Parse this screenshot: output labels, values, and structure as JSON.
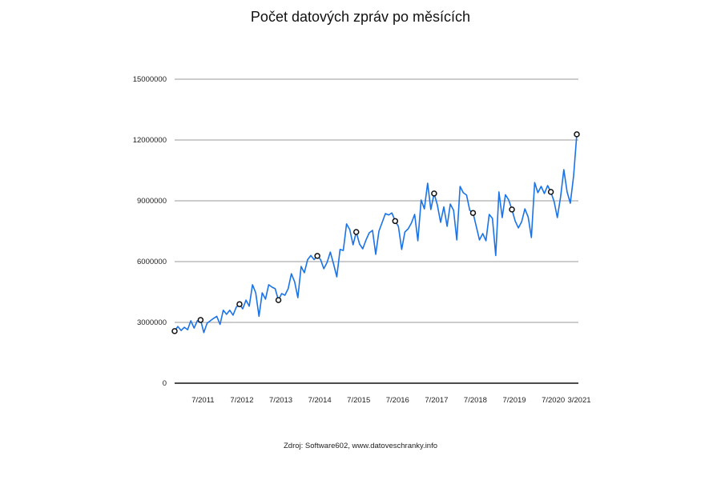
{
  "chart_data": {
    "type": "line",
    "title": "Počet datových zpráv po měsících",
    "source": "Zdroj: Software602, www.datoveschranky.info",
    "ylim": [
      0,
      15000000
    ],
    "y_ticks": [
      "0",
      "3000000",
      "6000000",
      "9000000",
      "12000000",
      "15000000"
    ],
    "x_tick_labels": [
      "7/2011",
      "7/2012",
      "7/2013",
      "7/2014",
      "7/2015",
      "7/2016",
      "7/2017",
      "7/2018",
      "7/2019",
      "7/2020",
      "3/2021"
    ],
    "grid": "horizontal",
    "line_color": "#1a73e8",
    "marker_dates": [
      "11/2010",
      "7/2011",
      "7/2012",
      "7/2013",
      "7/2014",
      "7/2015",
      "7/2016",
      "7/2017",
      "7/2018",
      "7/2019",
      "7/2020",
      "3/2021"
    ],
    "x": [
      "11/2010",
      "12/2010",
      "1/2011",
      "2/2011",
      "3/2011",
      "4/2011",
      "5/2011",
      "6/2011",
      "7/2011",
      "8/2011",
      "9/2011",
      "10/2011",
      "11/2011",
      "12/2011",
      "1/2012",
      "2/2012",
      "3/2012",
      "4/2012",
      "5/2012",
      "6/2012",
      "7/2012",
      "8/2012",
      "9/2012",
      "10/2012",
      "11/2012",
      "12/2012",
      "1/2013",
      "2/2013",
      "3/2013",
      "4/2013",
      "5/2013",
      "6/2013",
      "7/2013",
      "8/2013",
      "9/2013",
      "10/2013",
      "11/2013",
      "12/2013",
      "1/2014",
      "2/2014",
      "3/2014",
      "4/2014",
      "5/2014",
      "6/2014",
      "7/2014",
      "8/2014",
      "9/2014",
      "10/2014",
      "11/2014",
      "12/2014",
      "1/2015",
      "2/2015",
      "3/2015",
      "4/2015",
      "5/2015",
      "6/2015",
      "7/2015",
      "8/2015",
      "9/2015",
      "10/2015",
      "11/2015",
      "12/2015",
      "1/2016",
      "2/2016",
      "3/2016",
      "4/2016",
      "5/2016",
      "6/2016",
      "7/2016",
      "8/2016",
      "9/2016",
      "10/2016",
      "11/2016",
      "12/2016",
      "1/2017",
      "2/2017",
      "3/2017",
      "4/2017",
      "5/2017",
      "6/2017",
      "7/2017",
      "8/2017",
      "9/2017",
      "10/2017",
      "11/2017",
      "12/2017",
      "1/2018",
      "2/2018",
      "3/2018",
      "4/2018",
      "5/2018",
      "6/2018",
      "7/2018",
      "8/2018",
      "9/2018",
      "10/2018",
      "11/2018",
      "12/2018",
      "1/2019",
      "2/2019",
      "3/2019",
      "4/2019",
      "5/2019",
      "6/2019",
      "7/2019",
      "8/2019",
      "9/2019",
      "10/2019",
      "11/2019",
      "12/2019",
      "1/2020",
      "2/2020",
      "3/2020",
      "4/2020",
      "5/2020",
      "6/2020",
      "7/2020",
      "8/2020",
      "9/2020",
      "10/2020",
      "11/2020",
      "12/2020",
      "1/2021",
      "2/2021",
      "3/2021"
    ],
    "values": [
      2570000,
      2800000,
      2600000,
      2760000,
      2640000,
      3080000,
      2720000,
      3080000,
      3120000,
      2500000,
      2960000,
      3080000,
      3200000,
      3300000,
      2900000,
      3600000,
      3400000,
      3600000,
      3360000,
      3750000,
      3900000,
      3670000,
      4100000,
      3800000,
      4860000,
      4460000,
      3300000,
      4460000,
      4150000,
      4860000,
      4740000,
      4660000,
      4100000,
      4420000,
      4340000,
      4660000,
      5400000,
      5000000,
      4220000,
      5760000,
      5450000,
      6100000,
      6300000,
      6100000,
      6280000,
      6100000,
      5650000,
      5960000,
      6470000,
      5880000,
      5250000,
      6600000,
      6550000,
      7860000,
      7580000,
      6830000,
      7460000,
      6870000,
      6630000,
      7070000,
      7420000,
      7540000,
      6360000,
      7500000,
      7940000,
      8370000,
      8300000,
      8400000,
      8000000,
      7740000,
      6600000,
      7460000,
      7620000,
      7900000,
      8330000,
      7030000,
      9040000,
      8600000,
      9870000,
      8570000,
      9360000,
      8800000,
      7940000,
      8700000,
      7740000,
      8840000,
      8530000,
      7070000,
      9710000,
      9400000,
      9280000,
      8530000,
      8400000,
      7740000,
      7070000,
      7380000,
      7030000,
      8330000,
      8130000,
      6300000,
      9440000,
      8170000,
      9300000,
      9040000,
      8570000,
      8000000,
      7660000,
      7970000,
      8600000,
      8200000,
      7190000,
      9900000,
      9400000,
      9710000,
      9360000,
      9750000,
      9440000,
      8960000,
      8170000,
      9200000,
      10540000,
      9440000,
      8880000,
      10220000,
      12280000
    ]
  }
}
